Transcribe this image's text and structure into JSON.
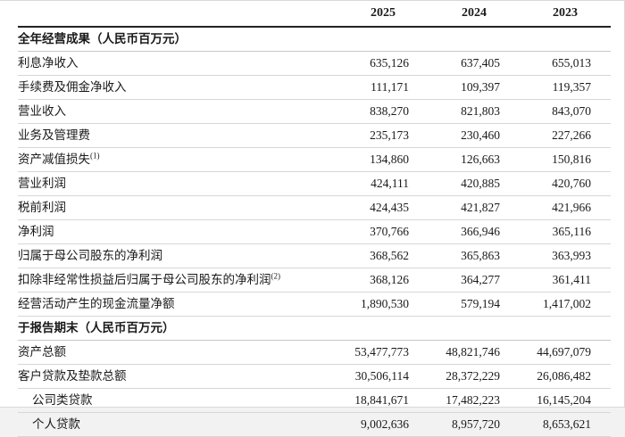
{
  "table": {
    "years": [
      "2025",
      "2024",
      "2023"
    ],
    "sections": [
      {
        "title": "全年经营成果（人民币百万元）",
        "rows": [
          {
            "label": "利息净收入",
            "values": [
              "635,126",
              "637,405",
              "655,013"
            ]
          },
          {
            "label": "手续费及佣金净收入",
            "values": [
              "111,171",
              "109,397",
              "119,357"
            ]
          },
          {
            "label": "营业收入",
            "values": [
              "838,270",
              "821,803",
              "843,070"
            ]
          },
          {
            "label": "业务及管理费",
            "values": [
              "235,173",
              "230,460",
              "227,266"
            ]
          },
          {
            "label": "资产减值损失",
            "footnote": "(1)",
            "values": [
              "134,860",
              "126,663",
              "150,816"
            ]
          },
          {
            "label": "营业利润",
            "values": [
              "424,111",
              "420,885",
              "420,760"
            ]
          },
          {
            "label": "税前利润",
            "values": [
              "424,435",
              "421,827",
              "421,966"
            ]
          },
          {
            "label": "净利润",
            "values": [
              "370,766",
              "366,946",
              "365,116"
            ]
          },
          {
            "label": "归属于母公司股东的净利润",
            "values": [
              "368,562",
              "365,863",
              "363,993"
            ]
          },
          {
            "label": "扣除非经常性损益后归属于母公司股东的净利润",
            "footnote": "(2)",
            "values": [
              "368,126",
              "364,277",
              "361,411"
            ]
          },
          {
            "label": "经营活动产生的现金流量净额",
            "values": [
              "1,890,530",
              "579,194",
              "1,417,002"
            ]
          }
        ]
      },
      {
        "title": "于报告期末（人民币百万元）",
        "rows": [
          {
            "label": "资产总额",
            "values": [
              "53,477,773",
              "48,821,746",
              "44,697,079"
            ]
          },
          {
            "label": "客户贷款及垫款总额",
            "values": [
              "30,506,114",
              "28,372,229",
              "26,086,482"
            ]
          },
          {
            "label": "公司类贷款",
            "indent": true,
            "values": [
              "18,841,671",
              "17,482,223",
              "16,145,204"
            ]
          },
          {
            "label": "个人贷款",
            "indent": true,
            "values": [
              "9,002,636",
              "8,957,720",
              "8,653,621"
            ]
          }
        ]
      }
    ]
  }
}
